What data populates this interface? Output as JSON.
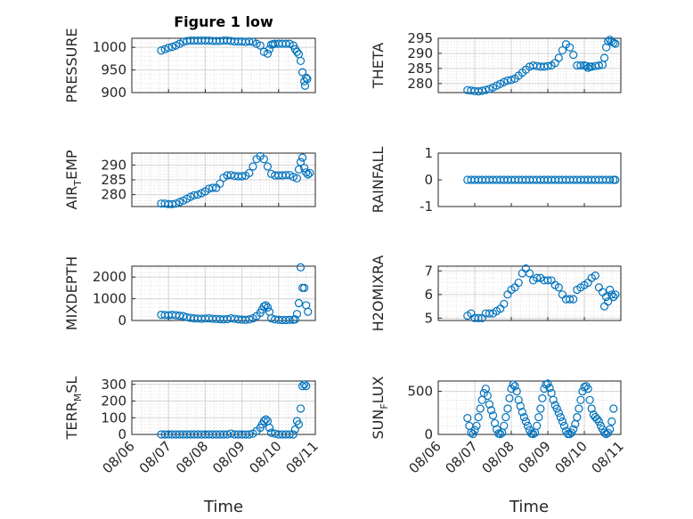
{
  "figure": {
    "title": "Figure 1 low",
    "marker_color": "#0072BD",
    "x_tick_labels": [
      "08/06",
      "08/07",
      "08/08",
      "08/09",
      "08/10",
      "08/11"
    ],
    "xlabel": "Time"
  },
  "chart_data": [
    {
      "type": "scatter",
      "ylabel": "PRESSURE",
      "title": "Figure 1 low",
      "ylim": [
        900,
        1020
      ],
      "yticks": [
        900,
        950,
        1000
      ],
      "grid": "on",
      "x": [
        0.8,
        0.9,
        1.0,
        1.1,
        1.2,
        1.3,
        1.4,
        1.5,
        1.6,
        1.7,
        1.8,
        1.9,
        2.0,
        2.1,
        2.2,
        2.3,
        2.4,
        2.5,
        2.6,
        2.7,
        2.8,
        2.9,
        3.0,
        3.1,
        3.2,
        3.3,
        3.4,
        3.5,
        3.6,
        3.7,
        3.75,
        3.8,
        3.85,
        3.9,
        4.0,
        4.1,
        4.2,
        4.3,
        4.4,
        4.45,
        4.5,
        4.55,
        4.6,
        4.65,
        4.7,
        4.72,
        4.75,
        4.78
      ],
      "y": [
        993,
        996,
        999,
        1001,
        1004,
        1008,
        1012,
        1014,
        1015,
        1015,
        1015,
        1015,
        1015,
        1015,
        1014,
        1014,
        1014,
        1015,
        1015,
        1014,
        1013,
        1013,
        1013,
        1012,
        1013,
        1012,
        1008,
        1004,
        990,
        986,
        996,
        1006,
        1007,
        1008,
        1008,
        1008,
        1008,
        1008,
        1004,
        996,
        990,
        985,
        970,
        945,
        925,
        915,
        933,
        930
      ]
    },
    {
      "type": "scatter",
      "ylabel": "THETA",
      "ylim": [
        277,
        295
      ],
      "yticks": [
        280,
        285,
        290,
        295
      ],
      "grid": "on",
      "x": [
        0.8,
        0.9,
        1.0,
        1.1,
        1.2,
        1.3,
        1.4,
        1.5,
        1.6,
        1.7,
        1.8,
        1.9,
        2.0,
        2.1,
        2.2,
        2.3,
        2.4,
        2.5,
        2.6,
        2.7,
        2.8,
        2.9,
        3.0,
        3.1,
        3.2,
        3.3,
        3.4,
        3.5,
        3.6,
        3.7,
        3.8,
        3.9,
        4.0,
        4.05,
        4.1,
        4.15,
        4.2,
        4.3,
        4.4,
        4.5,
        4.55,
        4.6,
        4.65,
        4.7,
        4.75,
        4.8,
        4.85
      ],
      "y": [
        277.8,
        277.7,
        277.5,
        277.4,
        277.6,
        277.9,
        278.2,
        278.7,
        279.3,
        279.9,
        280.5,
        281,
        281.2,
        281.6,
        282.6,
        283.6,
        284.6,
        285.6,
        286,
        285.8,
        285.6,
        285.6,
        285.8,
        286,
        286.8,
        288.5,
        291,
        293,
        292,
        289.5,
        286,
        286,
        286,
        285.8,
        285.2,
        285.6,
        285.6,
        285.8,
        286,
        286.2,
        288.5,
        292,
        294,
        294.5,
        294,
        293.5,
        293.2
      ]
    },
    {
      "type": "scatter",
      "ylabel": "AIR_TEMP",
      "ylim": [
        276,
        294
      ],
      "yticks": [
        280,
        285,
        290
      ],
      "grid": "on",
      "x": [
        0.8,
        0.9,
        1.0,
        1.1,
        1.2,
        1.3,
        1.4,
        1.5,
        1.6,
        1.7,
        1.8,
        1.9,
        2.0,
        2.1,
        2.2,
        2.3,
        2.4,
        2.5,
        2.6,
        2.7,
        2.8,
        2.9,
        3.0,
        3.1,
        3.2,
        3.3,
        3.4,
        3.5,
        3.6,
        3.7,
        3.8,
        3.9,
        4.0,
        4.1,
        4.2,
        4.3,
        4.4,
        4.5,
        4.55,
        4.6,
        4.65,
        4.7,
        4.75,
        4.8,
        4.85
      ],
      "y": [
        277,
        277,
        276.8,
        276.8,
        277,
        277.5,
        278,
        278.6,
        279.3,
        279.8,
        280,
        280.5,
        281.1,
        282,
        282.3,
        282.3,
        283.7,
        285.7,
        286.5,
        286.6,
        286.3,
        286.2,
        286.2,
        286.4,
        287.3,
        289.5,
        292,
        293,
        292,
        289.5,
        287,
        286.5,
        286.5,
        286.5,
        286.6,
        286.6,
        286,
        285.5,
        288.5,
        291,
        292.5,
        289,
        287.5,
        286.8,
        287.3
      ]
    },
    {
      "type": "scatter",
      "ylabel": "RAINFALL",
      "ylim": [
        -1,
        1
      ],
      "yticks": [
        -1,
        0,
        1
      ],
      "grid": "off",
      "x": [
        0.8,
        0.9,
        1.0,
        1.1,
        1.2,
        1.3,
        1.4,
        1.5,
        1.6,
        1.7,
        1.8,
        1.9,
        2.0,
        2.1,
        2.2,
        2.3,
        2.4,
        2.5,
        2.6,
        2.7,
        2.8,
        2.9,
        3.0,
        3.1,
        3.2,
        3.3,
        3.4,
        3.5,
        3.6,
        3.7,
        3.8,
        3.9,
        4.0,
        4.1,
        4.2,
        4.3,
        4.4,
        4.5,
        4.6,
        4.7,
        4.8,
        4.85
      ],
      "y": [
        0,
        0,
        0,
        0,
        0,
        0,
        0,
        0,
        0,
        0,
        0,
        0,
        0,
        0,
        0,
        0,
        0,
        0,
        0,
        0,
        0,
        0,
        0,
        0,
        0,
        0,
        0,
        0,
        0,
        0,
        0,
        0,
        0,
        0,
        0,
        0,
        0,
        0,
        0,
        0,
        0,
        0
      ]
    },
    {
      "type": "scatter",
      "ylabel": "MIXDEPTH",
      "ylim": [
        0,
        2500
      ],
      "yticks": [
        0,
        1000,
        2000
      ],
      "grid": "on",
      "x": [
        0.8,
        0.9,
        1.0,
        1.1,
        1.2,
        1.3,
        1.4,
        1.5,
        1.6,
        1.7,
        1.8,
        1.9,
        2.0,
        2.1,
        2.2,
        2.3,
        2.4,
        2.5,
        2.6,
        2.7,
        2.8,
        2.9,
        3.0,
        3.1,
        3.2,
        3.3,
        3.4,
        3.5,
        3.55,
        3.6,
        3.65,
        3.7,
        3.75,
        3.8,
        3.9,
        4.0,
        4.1,
        4.2,
        4.3,
        4.4,
        4.45,
        4.5,
        4.55,
        4.6,
        4.65,
        4.7,
        4.75,
        4.8
      ],
      "y": [
        260,
        250,
        240,
        260,
        240,
        220,
        200,
        150,
        120,
        100,
        90,
        80,
        90,
        100,
        80,
        70,
        60,
        50,
        60,
        100,
        80,
        50,
        40,
        30,
        50,
        100,
        200,
        350,
        500,
        650,
        700,
        600,
        400,
        100,
        50,
        30,
        20,
        20,
        30,
        30,
        50,
        300,
        800,
        2450,
        1500,
        1500,
        700,
        400
      ]
    },
    {
      "type": "scatter",
      "ylabel": "H2OMIXRA",
      "ylim": [
        4.9,
        7.2
      ],
      "yticks": [
        5,
        6,
        7
      ],
      "grid": "on",
      "x": [
        0.8,
        0.9,
        1.0,
        1.1,
        1.2,
        1.3,
        1.4,
        1.5,
        1.6,
        1.7,
        1.8,
        1.9,
        2.0,
        2.1,
        2.2,
        2.3,
        2.4,
        2.5,
        2.6,
        2.7,
        2.8,
        2.9,
        3.0,
        3.1,
        3.2,
        3.3,
        3.4,
        3.5,
        3.6,
        3.7,
        3.8,
        3.9,
        4.0,
        4.1,
        4.2,
        4.3,
        4.4,
        4.5,
        4.55,
        4.6,
        4.65,
        4.7,
        4.75,
        4.8,
        4.85
      ],
      "y": [
        5.1,
        5.2,
        5.0,
        5.0,
        5.0,
        5.2,
        5.2,
        5.2,
        5.3,
        5.4,
        5.6,
        6.0,
        6.2,
        6.3,
        6.5,
        6.9,
        7.1,
        6.9,
        6.6,
        6.7,
        6.7,
        6.6,
        6.6,
        6.6,
        6.4,
        6.3,
        6.0,
        5.8,
        5.8,
        5.8,
        6.2,
        6.3,
        6.4,
        6.5,
        6.7,
        6.8,
        6.3,
        6.1,
        5.5,
        5.9,
        5.7,
        6.2,
        6.0,
        5.9,
        6.0
      ]
    },
    {
      "type": "scatter",
      "ylabel": "TERR_MSL",
      "ylim": [
        0,
        320
      ],
      "yticks": [
        0,
        100,
        200,
        300
      ],
      "grid": "on",
      "x": [
        0.8,
        0.9,
        1.0,
        1.1,
        1.2,
        1.3,
        1.4,
        1.5,
        1.6,
        1.7,
        1.8,
        1.9,
        2.0,
        2.1,
        2.2,
        2.3,
        2.4,
        2.5,
        2.6,
        2.7,
        2.8,
        2.9,
        3.0,
        3.1,
        3.2,
        3.3,
        3.4,
        3.5,
        3.55,
        3.6,
        3.65,
        3.7,
        3.75,
        3.8,
        3.9,
        4.0,
        4.1,
        4.2,
        4.3,
        4.4,
        4.45,
        4.5,
        4.55,
        4.6,
        4.65,
        4.7,
        4.75
      ],
      "y": [
        0,
        0,
        0,
        0,
        0,
        0,
        0,
        0,
        0,
        0,
        0,
        0,
        0,
        0,
        0,
        0,
        0,
        0,
        0,
        5,
        0,
        0,
        0,
        0,
        0,
        5,
        20,
        40,
        60,
        80,
        90,
        80,
        40,
        10,
        5,
        0,
        0,
        0,
        0,
        0,
        30,
        80,
        60,
        155,
        290,
        300,
        290
      ]
    },
    {
      "type": "scatter",
      "ylabel": "SUN_FLUX",
      "ylim": [
        0,
        620
      ],
      "yticks": [
        0,
        500
      ],
      "grid": "on",
      "x": [
        0.8,
        0.85,
        0.9,
        0.95,
        1.0,
        1.05,
        1.1,
        1.15,
        1.2,
        1.25,
        1.3,
        1.35,
        1.4,
        1.45,
        1.5,
        1.55,
        1.6,
        1.65,
        1.7,
        1.75,
        1.8,
        1.85,
        1.9,
        1.95,
        2.0,
        2.05,
        2.1,
        2.15,
        2.2,
        2.25,
        2.3,
        2.35,
        2.4,
        2.45,
        2.5,
        2.55,
        2.6,
        2.65,
        2.7,
        2.75,
        2.8,
        2.85,
        2.9,
        2.95,
        3.0,
        3.05,
        3.1,
        3.15,
        3.2,
        3.25,
        3.3,
        3.35,
        3.4,
        3.45,
        3.5,
        3.55,
        3.6,
        3.65,
        3.7,
        3.75,
        3.8,
        3.85,
        3.9,
        3.95,
        4.0,
        4.05,
        4.1,
        4.15,
        4.2,
        4.25,
        4.3,
        4.35,
        4.4,
        4.45,
        4.5,
        4.55,
        4.6,
        4.65,
        4.7,
        4.75,
        4.8
      ],
      "y": [
        190,
        100,
        20,
        5,
        50,
        100,
        200,
        300,
        400,
        480,
        530,
        450,
        350,
        280,
        220,
        130,
        60,
        10,
        5,
        20,
        100,
        200,
        300,
        420,
        530,
        580,
        560,
        500,
        400,
        330,
        260,
        200,
        150,
        100,
        50,
        10,
        5,
        20,
        100,
        200,
        300,
        420,
        530,
        580,
        590,
        540,
        480,
        400,
        340,
        300,
        250,
        200,
        150,
        100,
        40,
        5,
        5,
        20,
        60,
        120,
        200,
        300,
        400,
        500,
        550,
        560,
        530,
        400,
        300,
        230,
        200,
        180,
        150,
        100,
        60,
        20,
        5,
        20,
        60,
        150,
        300
      ]
    }
  ]
}
